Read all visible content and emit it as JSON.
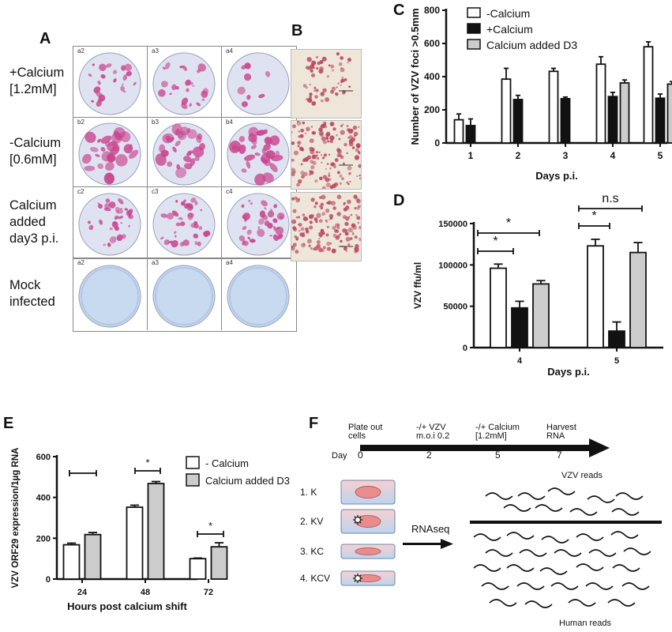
{
  "panelA": {
    "letter": "A",
    "rows": [
      {
        "label_lines": [
          "+Calcium",
          "[1.2mM]"
        ],
        "wells": [
          "a2",
          "a3",
          "a4"
        ],
        "kind": "plus"
      },
      {
        "label_lines": [
          "-Calcium",
          "[0.6mM]"
        ],
        "wells": [
          "b2",
          "b3",
          "b4"
        ],
        "kind": "minus"
      },
      {
        "label_lines": [
          "Calcium",
          "added",
          "day3 p.i."
        ],
        "wells": [
          "c2",
          "c3",
          "c4"
        ],
        "kind": "added"
      },
      {
        "label_lines": [
          "Mock",
          "infected"
        ],
        "wells": [
          "a2",
          "a3",
          "a4"
        ],
        "kind": "mock"
      }
    ],
    "colors": {
      "plaque": "#c9468f",
      "well_bg": "#dfe3f1",
      "mock_bg": "#c7daf0"
    }
  },
  "panelB": {
    "letter": "B",
    "bg": "#efe6da",
    "cells": "#b7475f"
  },
  "chart_data": [
    {
      "id": "C",
      "type": "bar",
      "xlabel": "Days p.i.",
      "ylabel": "Number of VZV foci >0.5mm",
      "categories": [
        "1",
        "2",
        "3",
        "4",
        "5"
      ],
      "ylim": [
        0,
        800
      ],
      "yticks": [
        0,
        200,
        400,
        600,
        800
      ],
      "series": [
        {
          "name": "-Calcium",
          "fill": "#ffffff",
          "values": [
            140,
            385,
            432,
            475,
            580
          ],
          "errors": [
            35,
            65,
            18,
            45,
            30
          ]
        },
        {
          "name": "+Calcium",
          "fill": "#111111",
          "values": [
            105,
            262,
            267,
            280,
            270
          ],
          "errors": [
            40,
            25,
            10,
            25,
            25
          ]
        },
        {
          "name": "Calcium added D3",
          "fill": "#cccccc",
          "values": [
            null,
            null,
            null,
            362,
            355
          ],
          "errors": [
            null,
            null,
            null,
            18,
            15
          ]
        }
      ],
      "legend": "top-left"
    },
    {
      "id": "D",
      "type": "bar",
      "xlabel": "Days p.i.",
      "ylabel": "VZV ffu/ml",
      "categories": [
        "4",
        "5"
      ],
      "ylim": [
        0,
        150000
      ],
      "yticks": [
        0,
        50000,
        100000,
        150000
      ],
      "series": [
        {
          "name": "",
          "fill": "#ffffff",
          "values": [
            96000,
            123000
          ],
          "errors": [
            5000,
            8000
          ]
        },
        {
          "name": "",
          "fill": "#111111",
          "values": [
            48000,
            20000
          ],
          "errors": [
            8000,
            11000
          ]
        },
        {
          "name": "",
          "fill": "#cccccc",
          "values": [
            77000,
            115000
          ],
          "errors": [
            4000,
            12000
          ]
        }
      ],
      "annotations": [
        "*",
        "*",
        "*",
        "n.s"
      ]
    },
    {
      "id": "E",
      "type": "bar",
      "xlabel": "Hours post calcium shift",
      "ylabel": "VZV ORF29 expression/1µg RNA",
      "categories": [
        "24",
        "48",
        "72"
      ],
      "ylim": [
        0,
        600
      ],
      "yticks": [
        0,
        200,
        400,
        600
      ],
      "series": [
        {
          "name": "- Calcium",
          "fill": "#ffffff",
          "values": [
            168,
            352,
            100
          ],
          "errors": [
            8,
            10,
            3
          ]
        },
        {
          "name": "Calcium added D3",
          "fill": "#cccccc",
          "values": [
            218,
            468,
            158
          ],
          "errors": [
            10,
            10,
            20
          ]
        }
      ],
      "annotations": [
        "",
        "*",
        "*"
      ],
      "legend": "top-right"
    }
  ],
  "panelF": {
    "letter": "F",
    "timeline_labels": [
      {
        "lines": [
          "Plate out",
          "cells"
        ],
        "day": "0"
      },
      {
        "lines": [
          "-/+ VZV",
          "m.o.i 0.2"
        ],
        "day": "2"
      },
      {
        "lines": [
          "-/+ Calcium",
          "[1.2mM]"
        ],
        "day": "5"
      },
      {
        "lines": [
          "Harvest",
          "RNA"
        ],
        "day": "7"
      }
    ],
    "day_label": "Day",
    "samples": [
      "1. K",
      "2. KV",
      "3. KC",
      "4. KCV"
    ],
    "rnaseq_label": "RNAseq",
    "vzv_reads_label": "VZV reads",
    "human_reads_label": "Human reads"
  }
}
